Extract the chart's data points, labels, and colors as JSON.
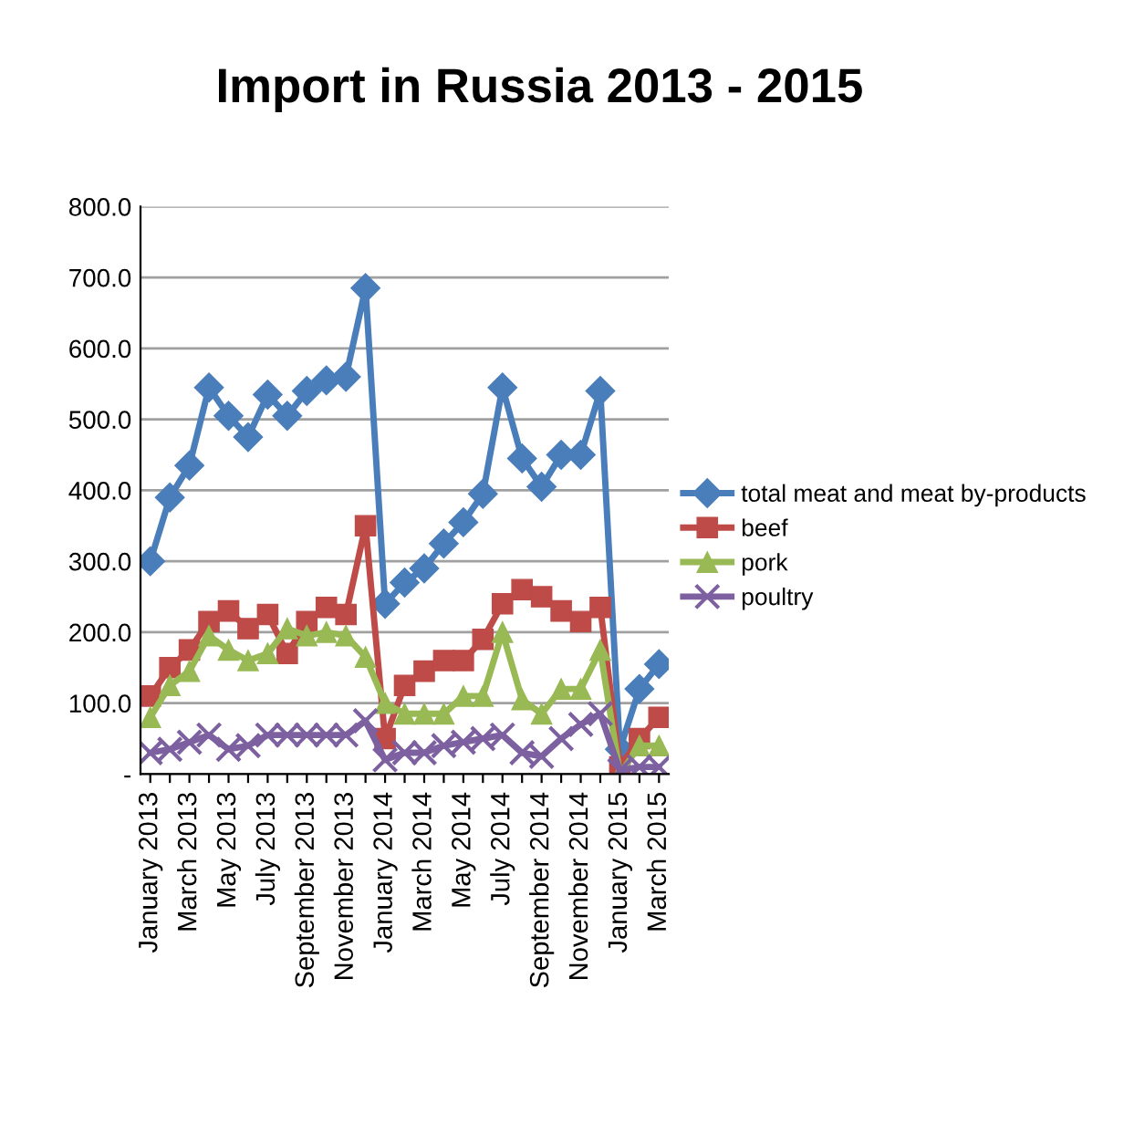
{
  "chart_data": {
    "type": "line",
    "title": "Import in Russia 2013 - 2015",
    "categories": [
      "January 2013",
      null,
      "March 2013",
      null,
      "May 2013",
      null,
      "July 2013",
      null,
      "September 2013",
      null,
      "November 2013",
      null,
      "January 2014",
      null,
      "March 2014",
      null,
      "May 2014",
      null,
      "July 2014",
      null,
      "September 2014",
      null,
      "November 2014",
      null,
      "January 2015",
      null,
      "March 2015"
    ],
    "series": [
      {
        "name": "total meat and meat by-products",
        "color": "#4a7ebb",
        "marker": "diamond",
        "values": [
          300,
          390,
          435,
          545,
          505,
          475,
          535,
          505,
          540,
          555,
          560,
          685,
          240,
          270,
          290,
          325,
          355,
          395,
          545,
          445,
          405,
          450,
          450,
          540,
          35,
          120,
          155
        ]
      },
      {
        "name": "beef",
        "color": "#be4b48",
        "marker": "square",
        "values": [
          110,
          150,
          175,
          215,
          230,
          205,
          225,
          170,
          215,
          235,
          225,
          350,
          50,
          125,
          145,
          160,
          160,
          190,
          240,
          260,
          250,
          230,
          215,
          235,
          10,
          50,
          80
        ]
      },
      {
        "name": "pork",
        "color": "#98b954",
        "marker": "triangle",
        "values": [
          80,
          125,
          145,
          195,
          175,
          160,
          170,
          205,
          195,
          200,
          195,
          165,
          100,
          85,
          85,
          85,
          110,
          110,
          200,
          105,
          85,
          120,
          120,
          175,
          0,
          40,
          40
        ]
      },
      {
        "name": "poultry",
        "color": "#7d60a0",
        "marker": "cross",
        "values": [
          30,
          35,
          45,
          55,
          35,
          40,
          55,
          55,
          55,
          55,
          55,
          75,
          20,
          30,
          30,
          40,
          45,
          50,
          55,
          30,
          25,
          50,
          70,
          85,
          5,
          10,
          10
        ]
      }
    ],
    "ylim": [
      0,
      800
    ],
    "yticks": [
      {
        "value": 0,
        "label": "-"
      },
      {
        "value": 100,
        "label": "100.0"
      },
      {
        "value": 200,
        "label": "200.0"
      },
      {
        "value": 300,
        "label": "300.0"
      },
      {
        "value": 400,
        "label": "400.0"
      },
      {
        "value": 500,
        "label": "500.0"
      },
      {
        "value": 600,
        "label": "600.0"
      },
      {
        "value": 700,
        "label": "700.0"
      },
      {
        "value": 800,
        "label": "800.0"
      }
    ],
    "grid": "y",
    "legend": "right",
    "line_style": "solid"
  }
}
